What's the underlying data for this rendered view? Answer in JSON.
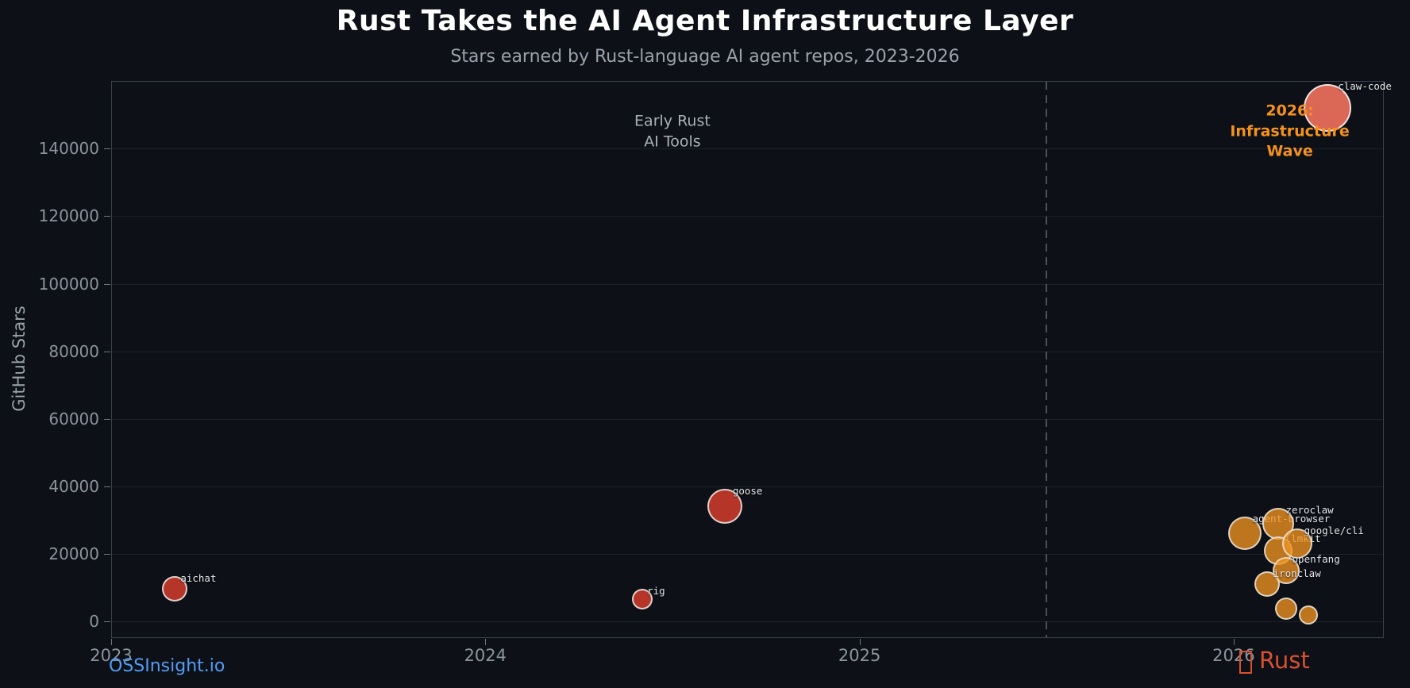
{
  "header": {
    "title": "Rust Takes the AI Agent Infrastructure Layer",
    "subtitle": "Stars earned by Rust-language AI agent repos, 2023-2026"
  },
  "footer": {
    "source_label": "OSSInsight.io",
    "brand_label": "Rust",
    "brand_icon": "crab-emoji-tofu"
  },
  "colors": {
    "background": "#0d1117",
    "title_text": "#ffffff",
    "subtitle_text": "#99a1ab",
    "tick_text": "#8b949e",
    "spine": "#3a414a",
    "red_bubble": "#bf392a",
    "salmon_bubble": "#e26a5a",
    "orange_bubble": "#f09420",
    "annotation_orange": "#f5921e",
    "annotation_gray": "#a9b0b8",
    "source_link": "#539bf5",
    "brand": "#d8502f"
  },
  "chart_data": {
    "type": "scatter",
    "title": "Rust Takes the AI Agent Infrastructure Layer",
    "subtitle": "Stars earned by Rust-language AI agent repos, 2023-2026",
    "xlabel": "",
    "ylabel": "GitHub Stars",
    "xlim": [
      2023,
      2026.4
    ],
    "ylim": [
      -5000,
      160000
    ],
    "xticks": [
      2023,
      2024,
      2025,
      2026
    ],
    "yticks": [
      0,
      20000,
      40000,
      60000,
      80000,
      100000,
      120000,
      140000
    ],
    "grid": "horizontal",
    "legend": "none",
    "divider_x": 2025.5,
    "annotations": [
      {
        "id": "early-rust",
        "text": "Early Rust\nAI Tools",
        "x": 2024.5,
        "y": 145000,
        "color": "gray"
      },
      {
        "id": "infrastructure-wave",
        "text": "2026: Infrastructure\nWave",
        "x": 2026.15,
        "y": 145000,
        "color": "orange"
      }
    ],
    "points": [
      {
        "label": "aichat",
        "x": 2023.17,
        "y": 9600,
        "r": 16,
        "group": "red"
      },
      {
        "label": "rig",
        "x": 2024.42,
        "y": 6600,
        "r": 13,
        "group": "red"
      },
      {
        "label": "goose",
        "x": 2024.64,
        "y": 34000,
        "r": 22,
        "group": "red"
      },
      {
        "label": "claw-code",
        "x": 2026.25,
        "y": 152000,
        "r": 30,
        "group": "salmon"
      },
      {
        "label": "agent-browser",
        "x": 2026.03,
        "y": 26000,
        "r": 21,
        "group": "orange"
      },
      {
        "label": "zeroclaw",
        "x": 2026.12,
        "y": 29000,
        "r": 20,
        "group": "orange"
      },
      {
        "label": "llmkit",
        "x": 2026.12,
        "y": 21000,
        "r": 18,
        "group": "orange"
      },
      {
        "label": "google/cli",
        "x": 2026.17,
        "y": 23000,
        "r": 19,
        "group": "orange"
      },
      {
        "label": "openfang",
        "x": 2026.14,
        "y": 15000,
        "r": 17,
        "group": "orange"
      },
      {
        "label": "ironclaw",
        "x": 2026.09,
        "y": 11000,
        "r": 16,
        "group": "orange"
      },
      {
        "label": "",
        "x": 2026.14,
        "y": 3800,
        "r": 14,
        "group": "orange"
      },
      {
        "label": "",
        "x": 2026.2,
        "y": 1900,
        "r": 12,
        "group": "orange"
      }
    ]
  }
}
